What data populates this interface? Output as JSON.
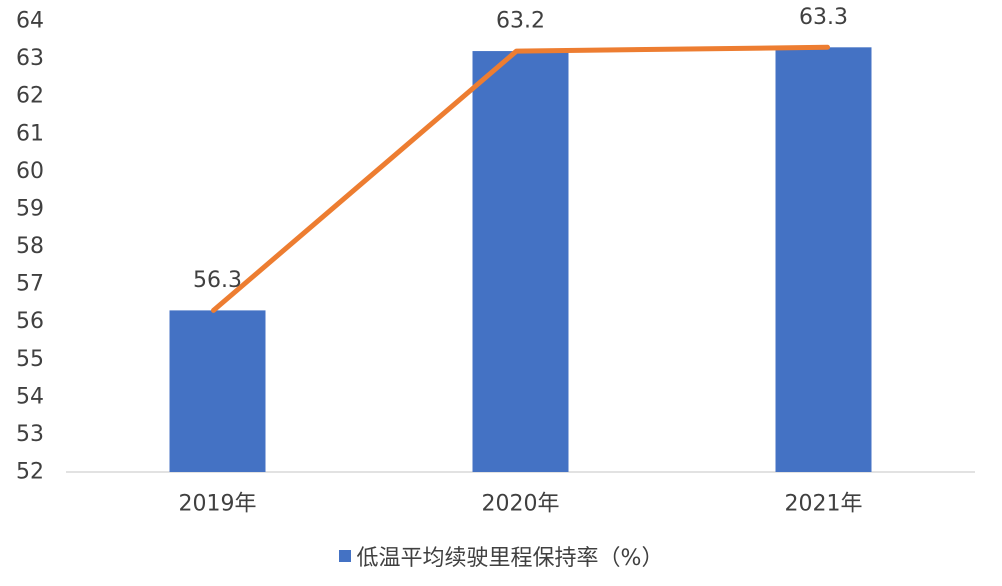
{
  "chart_data": {
    "type": "bar",
    "categories": [
      "2019年",
      "2020年",
      "2021年"
    ],
    "series": [
      {
        "name": "低温平均续驶里程保持率（%）",
        "values": [
          56.3,
          63.2,
          63.3
        ],
        "color": "#4472C4"
      }
    ],
    "overlay_line": {
      "values": [
        56.3,
        63.2,
        63.3
      ],
      "color": "#ED7D31"
    },
    "data_labels": [
      "56.3",
      "63.2",
      "63.3"
    ],
    "ylim": [
      52,
      64
    ],
    "yticks": [
      52,
      53,
      54,
      55,
      56,
      57,
      58,
      59,
      60,
      61,
      62,
      63,
      64
    ],
    "grid": false,
    "legend_position": "bottom",
    "title": "",
    "xlabel": "",
    "ylabel": ""
  }
}
